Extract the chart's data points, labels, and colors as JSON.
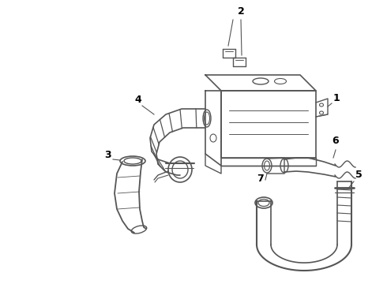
{
  "background_color": "#ffffff",
  "line_color": "#555555",
  "label_color": "#000000",
  "fig_width": 4.9,
  "fig_height": 3.6,
  "dpi": 100
}
